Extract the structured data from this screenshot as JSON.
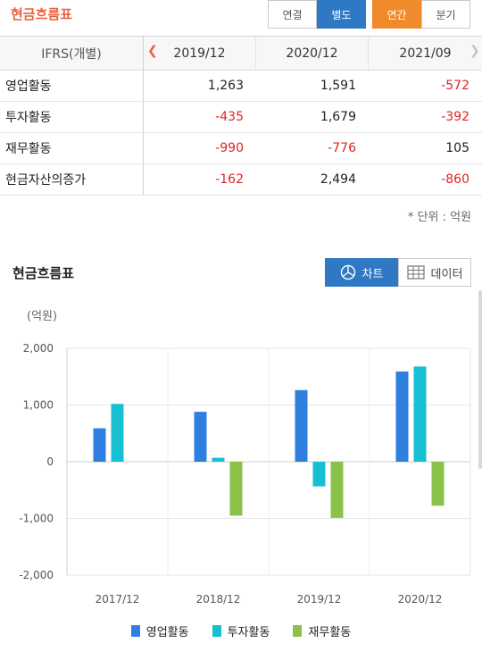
{
  "header": {
    "title": "현금흐름표",
    "consolidation": [
      "연결",
      "별도"
    ],
    "period": [
      "연간",
      "분기"
    ]
  },
  "table": {
    "label_header": "IFRS(개별)",
    "columns": [
      "2019/12",
      "2020/12",
      "2021/09"
    ],
    "rows": [
      {
        "label": "영업활동",
        "values": [
          "1,263",
          "1,591",
          "-572"
        ]
      },
      {
        "label": "투자활동",
        "values": [
          "-435",
          "1,679",
          "-392"
        ]
      },
      {
        "label": "재무활동",
        "values": [
          "-990",
          "-776",
          "105"
        ]
      },
      {
        "label": "현금자산의증가",
        "values": [
          "-162",
          "2,494",
          "-860"
        ]
      }
    ],
    "unit_note": "* 단위 : 억원"
  },
  "chart_section": {
    "title": "현금흐름표",
    "chart_button": "차트",
    "data_button": "데이터",
    "chart_icon": "chart-circle-icon",
    "data_icon": "table-grid-icon"
  },
  "colors": {
    "accent_orange": "#e8603c",
    "blue_button": "#2f78c4",
    "negative": "#e02424"
  },
  "chart_data": {
    "type": "bar",
    "ylabel": "(억원)",
    "ylim": [
      -2000,
      2000
    ],
    "yticks": [
      2000,
      1000,
      0,
      -1000,
      -2000
    ],
    "ytick_labels": [
      "2,000",
      "1,000",
      "0",
      "-1,000",
      "-2,000"
    ],
    "categories": [
      "2017/12",
      "2018/12",
      "2019/12",
      "2020/12"
    ],
    "series": [
      {
        "name": "영업활동",
        "color": "#2f7fe0",
        "values": [
          590,
          880,
          1263,
          1591
        ]
      },
      {
        "name": "투자활동",
        "color": "#16c0d2",
        "values": [
          1020,
          70,
          -435,
          1679
        ]
      },
      {
        "name": "재무활동",
        "color": "#8ac249",
        "values": [
          0,
          -950,
          -990,
          -776
        ]
      }
    ],
    "grid": true,
    "legend_position": "bottom"
  }
}
